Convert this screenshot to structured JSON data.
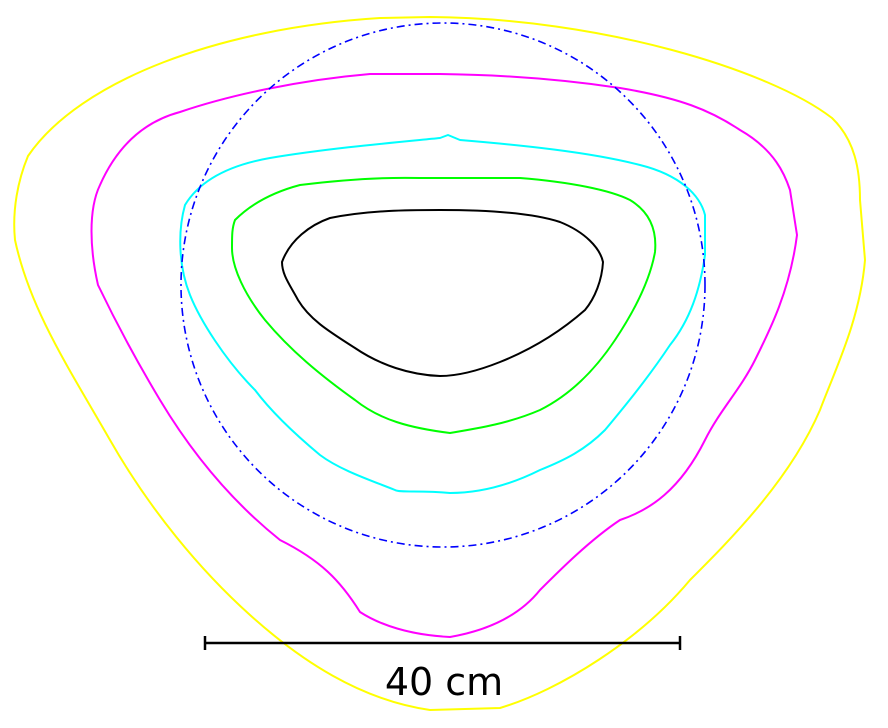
{
  "figure": {
    "description_type": "isodose-contour-plot"
  },
  "contours": [
    {
      "name": "outer-contour",
      "color": "#ffff00"
    },
    {
      "name": "second-contour",
      "color": "#ff00ff"
    },
    {
      "name": "third-contour",
      "color": "#00ffff"
    },
    {
      "name": "fourth-contour",
      "color": "#00ff00"
    },
    {
      "name": "inner-contour",
      "color": "#000000"
    }
  ],
  "reference_circle": {
    "name": "reference-circle",
    "color": "#0000ff",
    "style": "dash-dot"
  },
  "scale_bar": {
    "label": "40 cm",
    "length_cm": 40,
    "color": "#000000"
  }
}
